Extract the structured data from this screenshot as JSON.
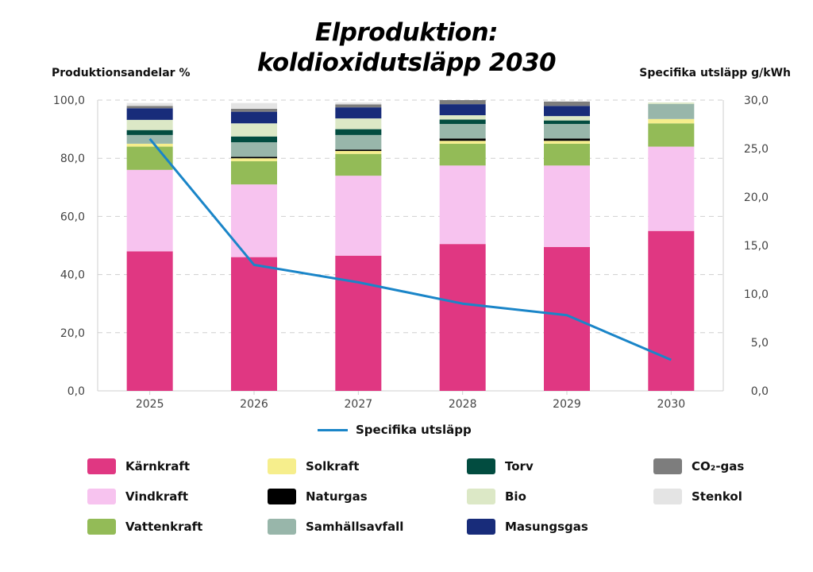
{
  "title_line1": "Elproduktion:",
  "title_line2": "koldioxidutsläpp 2030",
  "chart_data": {
    "type": "bar",
    "stacked": true,
    "categories": [
      "2025",
      "2026",
      "2027",
      "2028",
      "2029",
      "2030"
    ],
    "ylabel": "Produktionsandelar %",
    "ylim": [
      0,
      100
    ],
    "yticks": [
      "0,0",
      "20,0",
      "40,0",
      "60,0",
      "80,0",
      "100,0"
    ],
    "y2label": "Specifika utsläpp g/kWh",
    "y2lim": [
      0,
      30
    ],
    "y2ticks": [
      "0,0",
      "5,0",
      "10,0",
      "15,0",
      "20,0",
      "25,0",
      "30,0"
    ],
    "grid": true,
    "series": [
      {
        "name": "Kärnkraft",
        "color": "#e03782",
        "values": [
          48.0,
          46.0,
          46.5,
          50.5,
          49.5,
          55.0
        ]
      },
      {
        "name": "Vindkraft",
        "color": "#f7c3ef",
        "values": [
          28.0,
          25.0,
          27.5,
          27.0,
          28.0,
          29.0
        ]
      },
      {
        "name": "Vattenkraft",
        "color": "#93bb57",
        "values": [
          8.0,
          8.0,
          7.5,
          7.5,
          7.5,
          8.0
        ]
      },
      {
        "name": "Solkraft",
        "color": "#f6ee8c",
        "values": [
          1.0,
          1.0,
          1.0,
          1.0,
          1.0,
          1.5
        ]
      },
      {
        "name": "Naturgas",
        "color": "#000000",
        "values": [
          0.0,
          0.5,
          0.5,
          0.8,
          0.8,
          0.0
        ]
      },
      {
        "name": "Samhällsavfall",
        "color": "#98b6aa",
        "values": [
          3.0,
          5.0,
          5.0,
          5.0,
          5.0,
          5.2
        ]
      },
      {
        "name": "Torv",
        "color": "#024c40",
        "values": [
          1.7,
          2.0,
          2.0,
          1.5,
          1.2,
          0.0
        ]
      },
      {
        "name": "Bio",
        "color": "#dce8c6",
        "values": [
          3.5,
          4.5,
          3.7,
          1.5,
          1.5,
          0.5
        ]
      },
      {
        "name": "Masungsgas",
        "color": "#182c7a",
        "values": [
          4.0,
          4.0,
          3.8,
          3.8,
          3.5,
          0.0
        ]
      },
      {
        "name": "CO₂-gas",
        "color": "#7d7d7d",
        "values": [
          0.8,
          1.0,
          1.0,
          1.4,
          1.5,
          0.0
        ]
      },
      {
        "name": "Stenkol",
        "color": "#e4e4e4",
        "values": [
          1.0,
          2.0,
          0.7,
          0.0,
          0.0,
          0.0
        ]
      }
    ],
    "line_series": {
      "name": "Specifika utsläpp",
      "color": "#1a85c8",
      "axis": "right",
      "values": [
        26.0,
        13.0,
        11.2,
        9.0,
        7.8,
        3.2
      ]
    },
    "legend_order": [
      "Kärnkraft",
      "Vindkraft",
      "Vattenkraft",
      "Solkraft",
      "Naturgas",
      "Samhällsavfall",
      "Torv",
      "Bio",
      "Masungsgas",
      "CO₂-gas",
      "Stenkol"
    ]
  }
}
